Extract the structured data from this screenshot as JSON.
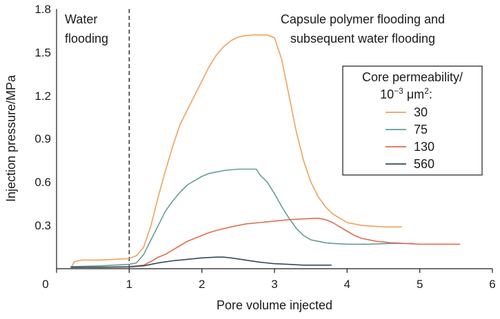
{
  "chart_data": {
    "type": "line",
    "xlabel": "Pore volume injected",
    "ylabel": "Injection pressure/MPa",
    "xlim": [
      0,
      6
    ],
    "ylim": [
      0,
      1.8
    ],
    "xticks": [
      "0",
      "1",
      "2",
      "3",
      "4",
      "5",
      "6"
    ],
    "yticks": [
      "0.3",
      "0.6",
      "0.9",
      "1.2",
      "1.5",
      "1.8"
    ],
    "divider_x": 1,
    "annotations": {
      "left": [
        "Water",
        "flooding"
      ],
      "right": [
        "Capsule polymer flooding and",
        "subsequent water flooding"
      ]
    },
    "legend": {
      "title_line1": "Core permeability/",
      "title_line2_base": "10",
      "title_line2_exp": "−3",
      "title_line2_unit": " μm",
      "title_line2_unit_exp": "2",
      "title_line2_end": ":",
      "placement": "top-right"
    },
    "series": [
      {
        "name": "30",
        "color": "#f0a05a",
        "points": [
          [
            0.2,
            0.01
          ],
          [
            0.25,
            0.05
          ],
          [
            0.35,
            0.06
          ],
          [
            0.6,
            0.06
          ],
          [
            0.8,
            0.065
          ],
          [
            1.0,
            0.07
          ],
          [
            1.1,
            0.09
          ],
          [
            1.2,
            0.15
          ],
          [
            1.3,
            0.3
          ],
          [
            1.4,
            0.5
          ],
          [
            1.5,
            0.68
          ],
          [
            1.6,
            0.85
          ],
          [
            1.7,
            1.0
          ],
          [
            1.8,
            1.1
          ],
          [
            1.9,
            1.2
          ],
          [
            2.0,
            1.3
          ],
          [
            2.1,
            1.4
          ],
          [
            2.2,
            1.48
          ],
          [
            2.3,
            1.54
          ],
          [
            2.4,
            1.58
          ],
          [
            2.5,
            1.605
          ],
          [
            2.6,
            1.615
          ],
          [
            2.7,
            1.62
          ],
          [
            2.8,
            1.62
          ],
          [
            2.9,
            1.62
          ],
          [
            3.0,
            1.6
          ],
          [
            3.1,
            1.45
          ],
          [
            3.2,
            1.2
          ],
          [
            3.3,
            0.95
          ],
          [
            3.4,
            0.75
          ],
          [
            3.5,
            0.6
          ],
          [
            3.6,
            0.5
          ],
          [
            3.7,
            0.43
          ],
          [
            3.8,
            0.38
          ],
          [
            3.9,
            0.35
          ],
          [
            4.0,
            0.32
          ],
          [
            4.2,
            0.3
          ],
          [
            4.5,
            0.29
          ],
          [
            4.75,
            0.29
          ]
        ]
      },
      {
        "name": "75",
        "color": "#5f9e98",
        "points": [
          [
            0.2,
            0.015
          ],
          [
            0.6,
            0.02
          ],
          [
            1.0,
            0.03
          ],
          [
            1.1,
            0.04
          ],
          [
            1.2,
            0.1
          ],
          [
            1.3,
            0.2
          ],
          [
            1.4,
            0.3
          ],
          [
            1.5,
            0.4
          ],
          [
            1.6,
            0.47
          ],
          [
            1.7,
            0.53
          ],
          [
            1.8,
            0.58
          ],
          [
            1.9,
            0.61
          ],
          [
            2.0,
            0.64
          ],
          [
            2.1,
            0.66
          ],
          [
            2.2,
            0.67
          ],
          [
            2.3,
            0.68
          ],
          [
            2.4,
            0.685
          ],
          [
            2.5,
            0.69
          ],
          [
            2.6,
            0.69
          ],
          [
            2.7,
            0.69
          ],
          [
            2.75,
            0.69
          ],
          [
            2.8,
            0.65
          ],
          [
            2.9,
            0.6
          ],
          [
            3.0,
            0.52
          ],
          [
            3.1,
            0.43
          ],
          [
            3.2,
            0.35
          ],
          [
            3.3,
            0.28
          ],
          [
            3.4,
            0.23
          ],
          [
            3.5,
            0.2
          ],
          [
            3.6,
            0.19
          ],
          [
            3.7,
            0.18
          ],
          [
            3.8,
            0.175
          ],
          [
            4.0,
            0.17
          ],
          [
            4.3,
            0.17
          ],
          [
            4.6,
            0.175
          ],
          [
            4.9,
            0.175
          ]
        ]
      },
      {
        "name": "130",
        "color": "#e06b50",
        "points": [
          [
            0.2,
            0.01
          ],
          [
            0.6,
            0.012
          ],
          [
            1.0,
            0.015
          ],
          [
            1.2,
            0.025
          ],
          [
            1.3,
            0.05
          ],
          [
            1.4,
            0.08
          ],
          [
            1.5,
            0.1
          ],
          [
            1.6,
            0.13
          ],
          [
            1.7,
            0.16
          ],
          [
            1.8,
            0.19
          ],
          [
            1.9,
            0.21
          ],
          [
            2.0,
            0.23
          ],
          [
            2.1,
            0.25
          ],
          [
            2.2,
            0.265
          ],
          [
            2.4,
            0.29
          ],
          [
            2.6,
            0.31
          ],
          [
            2.8,
            0.32
          ],
          [
            3.0,
            0.33
          ],
          [
            3.2,
            0.34
          ],
          [
            3.4,
            0.345
          ],
          [
            3.6,
            0.35
          ],
          [
            3.7,
            0.34
          ],
          [
            3.8,
            0.32
          ],
          [
            3.9,
            0.29
          ],
          [
            4.0,
            0.26
          ],
          [
            4.1,
            0.23
          ],
          [
            4.2,
            0.21
          ],
          [
            4.4,
            0.19
          ],
          [
            4.6,
            0.18
          ],
          [
            4.8,
            0.175
          ],
          [
            5.0,
            0.17
          ],
          [
            5.3,
            0.17
          ],
          [
            5.55,
            0.17
          ]
        ]
      },
      {
        "name": "560",
        "color": "#2e4a5e",
        "points": [
          [
            0.2,
            0.01
          ],
          [
            0.6,
            0.01
          ],
          [
            1.0,
            0.012
          ],
          [
            1.2,
            0.02
          ],
          [
            1.3,
            0.03
          ],
          [
            1.4,
            0.04
          ],
          [
            1.6,
            0.055
          ],
          [
            1.8,
            0.065
          ],
          [
            2.0,
            0.075
          ],
          [
            2.2,
            0.08
          ],
          [
            2.3,
            0.08
          ],
          [
            2.4,
            0.075
          ],
          [
            2.6,
            0.06
          ],
          [
            2.8,
            0.045
          ],
          [
            3.0,
            0.035
          ],
          [
            3.2,
            0.03
          ],
          [
            3.4,
            0.025
          ],
          [
            3.6,
            0.025
          ],
          [
            3.78,
            0.025
          ]
        ]
      }
    ]
  }
}
